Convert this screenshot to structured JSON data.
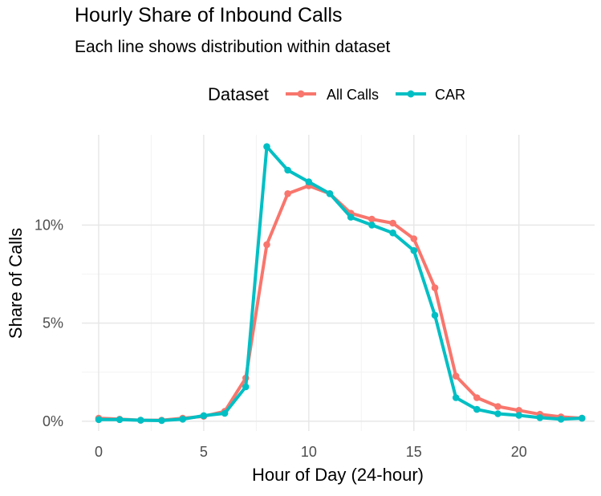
{
  "chart_data": {
    "type": "line",
    "title": "Hourly Share of Inbound Calls",
    "subtitle": "Each line shows distribution within dataset",
    "xlabel": "Hour of Day (24-hour)",
    "ylabel": "Share of Calls",
    "legend": {
      "title": "Dataset",
      "position": "top"
    },
    "xlim": [
      -0.8,
      23.6
    ],
    "ylim": [
      -0.5,
      14.6
    ],
    "x_ticks": [
      0,
      5,
      10,
      15,
      20
    ],
    "y_ticks": [
      0,
      5,
      10
    ],
    "y_tick_labels": [
      "0%",
      "5%",
      "10%"
    ],
    "grid": true,
    "x": [
      0,
      1,
      2,
      3,
      4,
      5,
      6,
      7,
      8,
      9,
      10,
      11,
      12,
      13,
      14,
      15,
      16,
      17,
      18,
      19,
      20,
      21,
      22,
      23
    ],
    "series": [
      {
        "name": "All Calls",
        "color": "#F8766D",
        "values": [
          0.15,
          0.1,
          0.05,
          0.05,
          0.15,
          0.25,
          0.5,
          2.2,
          9.0,
          11.6,
          12.0,
          11.6,
          10.6,
          10.3,
          10.1,
          9.3,
          6.8,
          2.3,
          1.2,
          0.75,
          0.55,
          0.35,
          0.22,
          0.15
        ]
      },
      {
        "name": "CAR",
        "color": "#00BFC4",
        "values": [
          0.08,
          0.08,
          0.05,
          0.03,
          0.1,
          0.28,
          0.4,
          1.75,
          14.0,
          12.8,
          12.2,
          11.6,
          10.4,
          10.0,
          9.6,
          8.7,
          5.4,
          1.2,
          0.6,
          0.38,
          0.3,
          0.18,
          0.1,
          0.15
        ]
      }
    ]
  }
}
